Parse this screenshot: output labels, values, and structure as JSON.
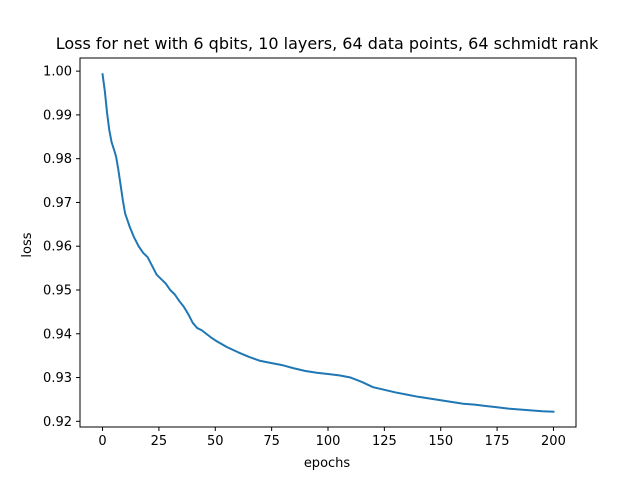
{
  "chart_data": {
    "type": "line",
    "title": "Loss for net with 6 qbits, 10 layers, 64 data points, 64 schmidt rank",
    "xlabel": "epochs",
    "ylabel": "loss",
    "xlim": [
      -10,
      210
    ],
    "ylim": [
      0.9187,
      1.003
    ],
    "x_ticks": [
      0,
      25,
      50,
      75,
      100,
      125,
      150,
      175,
      200
    ],
    "y_ticks": [
      0.92,
      0.93,
      0.94,
      0.95,
      0.96,
      0.97,
      0.98,
      0.99,
      1.0
    ],
    "x_tick_labels": [
      "0",
      "25",
      "50",
      "75",
      "100",
      "125",
      "150",
      "175",
      "200"
    ],
    "y_tick_labels": [
      "0.92",
      "0.93",
      "0.94",
      "0.95",
      "0.96",
      "0.97",
      "0.98",
      "0.99",
      "1.00"
    ],
    "grid": false,
    "legend": "none",
    "series": [
      {
        "color": "#1f77b4",
        "x": [
          0,
          1,
          2,
          3,
          4,
          5,
          6,
          7,
          8,
          9,
          10,
          11,
          12,
          14,
          16,
          18,
          20,
          22,
          24,
          26,
          28,
          30,
          32,
          34,
          36,
          38,
          40,
          42,
          44,
          46,
          48,
          50,
          55,
          60,
          65,
          70,
          75,
          80,
          85,
          90,
          95,
          100,
          105,
          110,
          115,
          120,
          125,
          130,
          135,
          140,
          145,
          150,
          155,
          160,
          165,
          170,
          175,
          180,
          185,
          190,
          195,
          200
        ],
        "y": [
          0.9993,
          0.9955,
          0.9905,
          0.9865,
          0.9838,
          0.9822,
          0.9805,
          0.9775,
          0.974,
          0.9705,
          0.9675,
          0.966,
          0.9645,
          0.962,
          0.96,
          0.9585,
          0.9575,
          0.9555,
          0.9535,
          0.9525,
          0.9515,
          0.95,
          0.949,
          0.9475,
          0.9462,
          0.9445,
          0.9425,
          0.9413,
          0.9408,
          0.94,
          0.9392,
          0.9385,
          0.937,
          0.9358,
          0.9347,
          0.9338,
          0.9333,
          0.9328,
          0.9321,
          0.9315,
          0.9311,
          0.9308,
          0.9305,
          0.93,
          0.929,
          0.9278,
          0.9272,
          0.9266,
          0.9261,
          0.9256,
          0.9252,
          0.9248,
          0.9244,
          0.924,
          0.9238,
          0.9235,
          0.9232,
          0.9229,
          0.9227,
          0.9225,
          0.9223,
          0.9222
        ]
      }
    ]
  }
}
